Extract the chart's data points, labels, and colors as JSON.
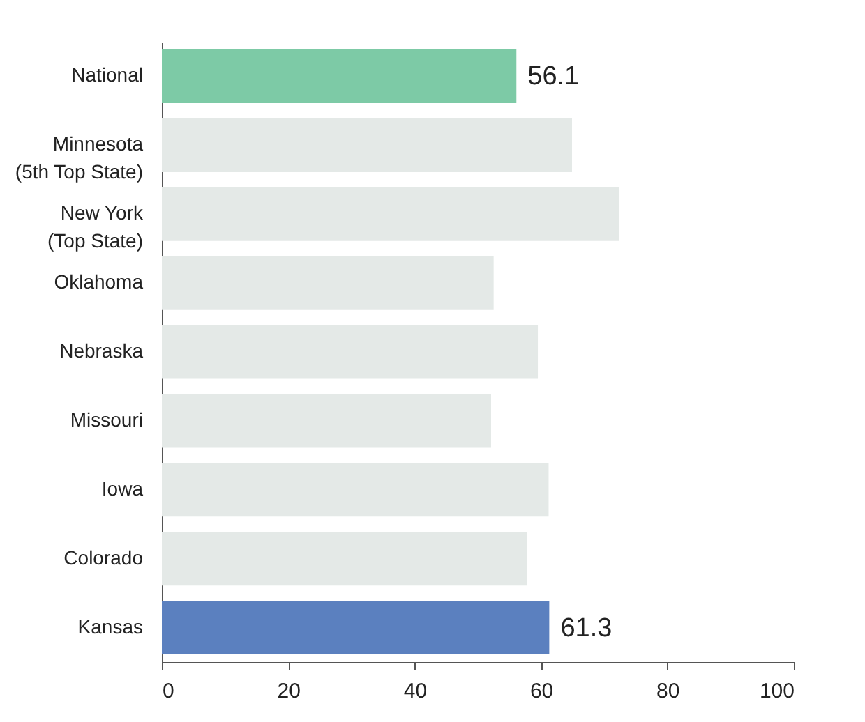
{
  "chart_data": {
    "type": "bar",
    "orientation": "horizontal",
    "categories": [
      "National",
      "Minnesota\n(5th Top State)",
      "New York\n(Top State)",
      "Oklahoma",
      "Nebraska",
      "Missouri",
      "Iowa",
      "Colorado",
      "Kansas"
    ],
    "values": [
      56.1,
      64.9,
      72.4,
      52.5,
      59.5,
      52.1,
      61.2,
      57.8,
      61.3
    ],
    "colors": [
      "#7dcaa6",
      "#e4e9e7",
      "#e4e9e7",
      "#e4e9e7",
      "#e4e9e7",
      "#e4e9e7",
      "#e4e9e7",
      "#e4e9e7",
      "#5b80bf"
    ],
    "value_labels": [
      "56.1",
      null,
      null,
      null,
      null,
      null,
      null,
      null,
      "61.3"
    ],
    "xlim": [
      0,
      100
    ],
    "xticks": [
      0,
      20,
      40,
      60,
      80,
      100
    ],
    "grid": false
  }
}
